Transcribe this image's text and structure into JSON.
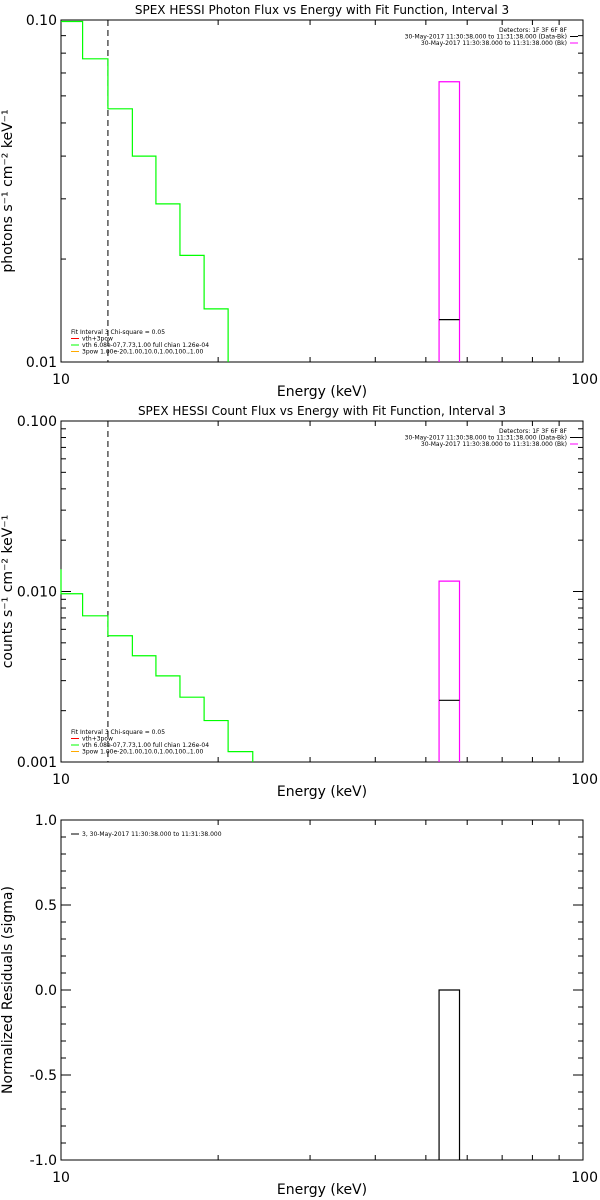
{
  "chart_data": [
    {
      "type": "step",
      "title": "SPEX HESSI Photon Flux vs Energy with Fit Function, Interval 3",
      "xlabel": "Energy (keV)",
      "ylabel": "photons s⁻¹ cm⁻² keV⁻¹",
      "x_scale": "log",
      "y_scale": "log",
      "xlim": [
        10,
        100
      ],
      "ylim": [
        0.01,
        0.1
      ],
      "x_ticks": [
        10,
        100
      ],
      "x_tick_labels": [
        "10",
        "100"
      ],
      "y_ticks": [
        0.01,
        0.1
      ],
      "y_tick_labels": [
        "0.01",
        "0.10"
      ],
      "vline": 12.3,
      "series": [
        {
          "color": "#00ff00",
          "steps": [
            {
              "x0": 10.0,
              "x1": 11.0,
              "y": 0.099
            },
            {
              "x0": 11.0,
              "x1": 12.3,
              "y": 0.077
            },
            {
              "x0": 12.3,
              "x1": 13.7,
              "y": 0.055
            },
            {
              "x0": 13.7,
              "x1": 15.2,
              "y": 0.04
            },
            {
              "x0": 15.2,
              "x1": 16.9,
              "y": 0.029
            },
            {
              "x0": 16.9,
              "x1": 18.8,
              "y": 0.0205
            },
            {
              "x0": 18.8,
              "x1": 20.9,
              "y": 0.0143
            }
          ],
          "drop_to": 0.01
        },
        {
          "color": "#ff00ff",
          "steps": [
            {
              "x0": 53.0,
              "x1": 58.0,
              "y": 0.066
            }
          ],
          "sides": true
        },
        {
          "color": "#000000",
          "steps": [
            {
              "x0": 53.0,
              "x1": 58.0,
              "y": 0.0133
            }
          ]
        }
      ],
      "legend_tr": {
        "lines": [
          {
            "text": "Detectors: 1F 3F 6F 8F",
            "color": ""
          },
          {
            "text": "30-May-2017 11:30:38.000 to 11:31:38.000 (Data-Bk)",
            "color": "#000000"
          },
          {
            "text": "30-May-2017 11:30:38.000 to 11:31:38.000 (Bk)",
            "color": "#ff00ff"
          }
        ]
      },
      "legend_bl": {
        "lines": [
          {
            "text": "Fit Interval 3   Chi-square = 0.05",
            "color": ""
          },
          {
            "text": "vth+3pow",
            "color": "#ff0000"
          },
          {
            "text": "vth 6.08e-07,7.73,1.00  full chian 1.26e-04",
            "color": "#00ff00"
          },
          {
            "text": "3pow 1.00e-20,1.00,10.0,1.00,100.,1.00",
            "color": "#ffaa00"
          }
        ]
      }
    },
    {
      "type": "step",
      "title": "SPEX HESSI Count Flux vs Energy with Fit Function, Interval 3",
      "xlabel": "Energy (keV)",
      "ylabel": "counts s⁻¹ cm⁻² keV⁻¹",
      "x_scale": "log",
      "y_scale": "log",
      "xlim": [
        10,
        100
      ],
      "ylim": [
        0.001,
        0.1
      ],
      "x_ticks": [
        10,
        100
      ],
      "x_tick_labels": [
        "10",
        "100"
      ],
      "y_ticks": [
        0.001,
        0.01,
        0.1
      ],
      "y_tick_labels": [
        "0.001",
        "0.010",
        "0.100"
      ],
      "vline": 12.3,
      "series": [
        {
          "color": "#00ff00",
          "start_from": 0.0135,
          "steps": [
            {
              "x0": 10.0,
              "x1": 11.0,
              "y": 0.0097
            },
            {
              "x0": 11.0,
              "x1": 12.3,
              "y": 0.0072
            },
            {
              "x0": 12.3,
              "x1": 13.7,
              "y": 0.0055
            },
            {
              "x0": 13.7,
              "x1": 15.2,
              "y": 0.0042
            },
            {
              "x0": 15.2,
              "x1": 16.9,
              "y": 0.0032
            },
            {
              "x0": 16.9,
              "x1": 18.8,
              "y": 0.0024
            },
            {
              "x0": 18.8,
              "x1": 20.9,
              "y": 0.00175
            },
            {
              "x0": 20.9,
              "x1": 23.3,
              "y": 0.00115
            }
          ],
          "drop_to": 0.001
        },
        {
          "color": "#ff00ff",
          "steps": [
            {
              "x0": 53.0,
              "x1": 58.0,
              "y": 0.0115
            }
          ],
          "sides": true
        },
        {
          "color": "#000000",
          "steps": [
            {
              "x0": 53.0,
              "x1": 58.0,
              "y": 0.0023
            }
          ]
        }
      ],
      "legend_tr": {
        "lines": [
          {
            "text": "Detectors: 1F 3F 6F 8F",
            "color": ""
          },
          {
            "text": "30-May-2017 11:30:38.000 to 11:31:38.000 (Data-Bk)",
            "color": "#000000"
          },
          {
            "text": "30-May-2017 11:30:38.000 to 11:31:38.000 (Bk)",
            "color": "#ff00ff"
          }
        ]
      },
      "legend_bl": {
        "lines": [
          {
            "text": "Fit Interval 3   Chi-square = 0.05",
            "color": ""
          },
          {
            "text": "vth+3pow",
            "color": "#ff0000"
          },
          {
            "text": "vth 6.08e-07,7.73,1.00  full chian 1.26e-04",
            "color": "#00ff00"
          },
          {
            "text": "3pow 1.00e-20,1.00,10.0,1.00,100.,1.00",
            "color": "#ffaa00"
          }
        ]
      }
    },
    {
      "type": "step",
      "title": "",
      "xlabel": "Energy (keV)",
      "ylabel": "Normalized Residuals (sigma)",
      "x_scale": "log",
      "y_scale": "linear",
      "xlim": [
        10,
        100
      ],
      "ylim": [
        -1.0,
        1.0
      ],
      "x_ticks": [
        10,
        100
      ],
      "x_tick_labels": [
        "10",
        "100"
      ],
      "y_ticks": [
        -1.0,
        -0.5,
        0.0,
        0.5,
        1.0
      ],
      "y_tick_labels": [
        "-1.0",
        "-0.5",
        "0.0",
        "0.5",
        "1.0"
      ],
      "series": [
        {
          "color": "#000000",
          "steps": [
            {
              "x0": 53.0,
              "x1": 58.0,
              "y": 0.0
            }
          ],
          "sides_to_bottom": true
        }
      ],
      "legend_tl": {
        "lines": [
          {
            "text": "3, 30-May-2017 11:30:38.000 to 11:31:38.000",
            "color": "#000000"
          }
        ]
      }
    }
  ]
}
